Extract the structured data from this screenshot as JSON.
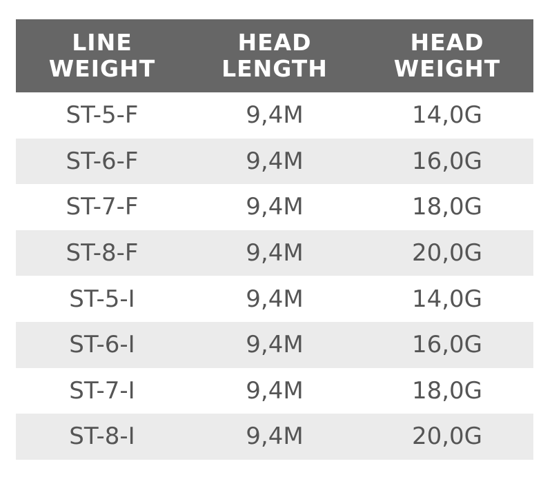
{
  "colors": {
    "header_bg": "#666666",
    "header_text": "#ffffff",
    "stripe": "#ebebeb",
    "text": "#555555"
  },
  "table": {
    "headers": [
      [
        "LINE",
        "WEIGHT"
      ],
      [
        "HEAD",
        "LENGTH"
      ],
      [
        "HEAD",
        "WEIGHT"
      ]
    ],
    "rows": [
      [
        "ST-5-F",
        "9,4M",
        "14,0G"
      ],
      [
        "ST-6-F",
        "9,4M",
        "16,0G"
      ],
      [
        "ST-7-F",
        "9,4M",
        "18,0G"
      ],
      [
        "ST-8-F",
        "9,4M",
        "20,0G"
      ],
      [
        "ST-5-I",
        "9,4M",
        "14,0G"
      ],
      [
        "ST-6-I",
        "9,4M",
        "16,0G"
      ],
      [
        "ST-7-I",
        "9,4M",
        "18,0G"
      ],
      [
        "ST-8-I",
        "9,4M",
        "20,0G"
      ]
    ]
  }
}
